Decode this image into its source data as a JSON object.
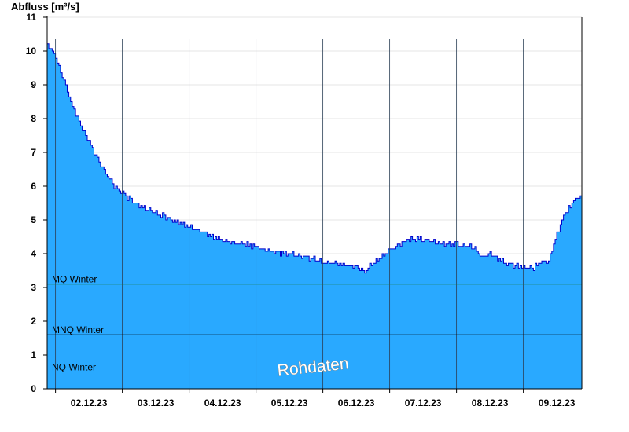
{
  "chart_data": {
    "type": "area",
    "ylabel": "Abfluss [m³/s]",
    "xlabel": "",
    "ylim": [
      0,
      11
    ],
    "y_ticks": [
      0,
      1,
      2,
      3,
      4,
      5,
      6,
      7,
      8,
      9,
      10,
      11
    ],
    "x_range": [
      "2023-12-01 21:00",
      "2023-12-09 21:00"
    ],
    "x_tick_labels": [
      "02.12.23",
      "03.12.23",
      "04.12.23",
      "05.12.23",
      "06.12.23",
      "07.12.23",
      "08.12.23",
      "09.12.23"
    ],
    "grid": true,
    "colors": {
      "fill": "#29a9ff",
      "line": "#0000cc",
      "mq": "#1f7a3f",
      "ref": "#000000"
    },
    "series": [
      {
        "x": [
          "2023-12-01 21:00",
          "2023-12-02 00:00",
          "2023-12-02 03:00",
          "2023-12-02 06:00",
          "2023-12-02 09:00",
          "2023-12-02 12:00",
          "2023-12-02 15:00",
          "2023-12-02 18:00",
          "2023-12-02 21:00",
          "2023-12-03 00:00",
          "2023-12-03 03:00",
          "2023-12-03 06:00",
          "2023-12-03 09:00",
          "2023-12-03 12:00",
          "2023-12-03 15:00",
          "2023-12-03 18:00",
          "2023-12-04 00:00",
          "2023-12-04 06:00",
          "2023-12-04 12:00",
          "2023-12-04 18:00",
          "2023-12-05 00:00",
          "2023-12-05 06:00",
          "2023-12-05 12:00",
          "2023-12-05 18:00",
          "2023-12-06 00:00",
          "2023-12-06 06:00",
          "2023-12-06 09:00",
          "2023-12-06 12:00",
          "2023-12-06 15:00",
          "2023-12-06 18:00",
          "2023-12-07 00:00",
          "2023-12-07 06:00",
          "2023-12-07 12:00",
          "2023-12-07 18:00",
          "2023-12-08 00:00",
          "2023-12-08 03:00",
          "2023-12-08 06:00",
          "2023-12-08 09:00",
          "2023-12-08 12:00",
          "2023-12-08 18:00",
          "2023-12-08 21:00",
          "2023-12-09 00:00",
          "2023-12-09 03:00",
          "2023-12-09 06:00",
          "2023-12-09 09:00",
          "2023-12-09 12:00",
          "2023-12-09 15:00",
          "2023-12-09 18:00",
          "2023-12-09 21:00"
        ],
        "y": [
          10.2,
          9.8,
          9.1,
          8.4,
          7.8,
          7.3,
          6.8,
          6.4,
          6.0,
          5.8,
          5.6,
          5.4,
          5.3,
          5.2,
          5.1,
          5.0,
          4.8,
          4.6,
          4.4,
          4.3,
          4.2,
          4.05,
          4.0,
          3.9,
          3.75,
          3.7,
          3.65,
          3.6,
          3.5,
          3.7,
          4.1,
          4.4,
          4.45,
          4.3,
          4.25,
          4.25,
          4.2,
          3.9,
          4.0,
          3.7,
          3.65,
          3.6,
          3.55,
          3.75,
          3.8,
          4.6,
          5.2,
          5.55,
          5.75
        ]
      }
    ],
    "reference_lines": [
      {
        "label": "MQ Winter",
        "value": 3.1,
        "color": "#1f7a3f"
      },
      {
        "label": "MNQ Winter",
        "value": 1.6,
        "color": "#000000"
      },
      {
        "label": "NQ Winter",
        "value": 0.5,
        "color": "#000000"
      }
    ],
    "annotations": [
      "Rohdaten"
    ]
  }
}
